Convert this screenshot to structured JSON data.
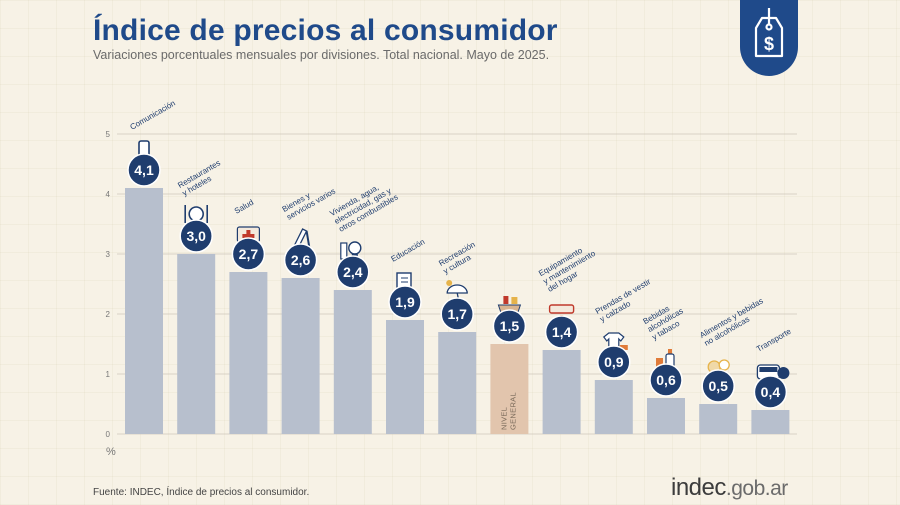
{
  "header": {
    "title": "Índice de precios al consumidor",
    "subtitle": "Variaciones porcentuales mensuales por divisiones. Total nacional. Mayo de 2025."
  },
  "footer": {
    "source": "Fuente: INDEC, Índice de precios al consumidor.",
    "brand_main": "indec",
    "brand_suffix": ".gob.ar"
  },
  "badge": {
    "icon": "price-tag-dollar-icon",
    "symbol": "$"
  },
  "colors": {
    "bar": "#b7bfcd",
    "highlight": "#e2c5ad",
    "accent": "#1f4a8a",
    "circle": "#1f3d6e"
  },
  "chart_data": {
    "type": "bar",
    "title": "Índice de precios al consumidor",
    "subtitle": "Variaciones porcentuales mensuales por divisiones. Total nacional. Mayo de 2025.",
    "ylabel": "%",
    "ylim": [
      0,
      5
    ],
    "yticks": [
      0,
      1,
      2,
      3,
      4,
      5
    ],
    "grid": true,
    "highlight_index": 7,
    "categories": [
      {
        "label": [
          "Comunicación"
        ],
        "value": 4.1,
        "display": "4,1",
        "icon": "smartphone-icon"
      },
      {
        "label": [
          "Restaurantes",
          "y hoteles"
        ],
        "value": 3.0,
        "display": "3,0",
        "icon": "cutlery-icon"
      },
      {
        "label": [
          "Salud"
        ],
        "value": 2.7,
        "display": "2,7",
        "icon": "first-aid-icon"
      },
      {
        "label": [
          "Bienes y",
          "servicios varios"
        ],
        "value": 2.6,
        "display": "2,6",
        "icon": "comb-brush-icon"
      },
      {
        "label": [
          "Vivienda, agua,",
          "electricidad, gas y",
          "otros combustibles"
        ],
        "value": 2.4,
        "display": "2,4",
        "icon": "lightbulb-icon"
      },
      {
        "label": [
          "Educación"
        ],
        "value": 1.9,
        "display": "1,9",
        "icon": "notebook-icon"
      },
      {
        "label": [
          "Recreación",
          "y cultura"
        ],
        "value": 1.7,
        "display": "1,7",
        "icon": "beach-umbrella-icon"
      },
      {
        "label": [
          "NIVEL",
          "GENERAL"
        ],
        "value": 1.5,
        "display": "1,5",
        "icon": "basket-icon"
      },
      {
        "label": [
          "Equipamiento",
          "y mantenimiento",
          "del hogar"
        ],
        "value": 1.4,
        "display": "1,4",
        "icon": "air-conditioner-icon"
      },
      {
        "label": [
          "Prendas de vestir",
          "y calzado"
        ],
        "value": 0.9,
        "display": "0,9",
        "icon": "tshirt-icon"
      },
      {
        "label": [
          "Bebidas",
          "alcohólicas",
          "y tabaco"
        ],
        "value": 0.6,
        "display": "0,6",
        "icon": "bottle-icon"
      },
      {
        "label": [
          "Alimentos y bebidas",
          "no alcohólicas"
        ],
        "value": 0.5,
        "display": "0,5",
        "icon": "food-icon"
      },
      {
        "label": [
          "Transporte"
        ],
        "value": 0.4,
        "display": "0,4",
        "icon": "bus-icon"
      }
    ]
  }
}
